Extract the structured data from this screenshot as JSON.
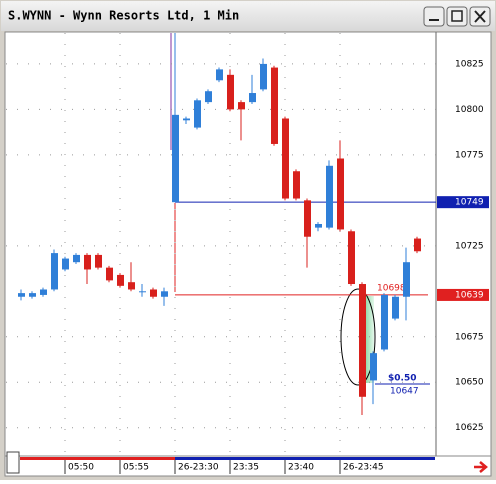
{
  "chart_data": {
    "type": "candlestick",
    "title": "S.WYNN - Wynn Resorts Ltd, 1 Min",
    "categories": [
      null,
      null,
      null,
      null,
      "05:50",
      null,
      null,
      null,
      null,
      "05:55",
      null,
      null,
      null,
      null,
      "26-23:30",
      null,
      null,
      null,
      null,
      "23:35",
      null,
      null,
      null,
      null,
      "23:40",
      null,
      null,
      null,
      null,
      "26-23:45",
      null,
      null,
      null,
      null,
      null,
      null,
      null
    ],
    "series": [
      {
        "name": "open",
        "values": [
          10697,
          10697,
          10698,
          10701,
          10712,
          10716,
          10720,
          10720,
          10713,
          10709,
          10705,
          10700,
          10701,
          10697,
          10749,
          10794,
          10790,
          10804,
          10816,
          10819,
          10804,
          10804,
          10811,
          10823,
          10795,
          10766,
          10750,
          10735,
          10735,
          10773,
          10733,
          10704,
          10651,
          10668,
          10685,
          10697,
          10729
        ]
      },
      {
        "name": "high",
        "values": [
          10701,
          10700,
          10702,
          10723,
          10719,
          10721,
          10721,
          10721,
          10714,
          10710,
          10716,
          10704,
          10702,
          10702,
          10842,
          10796,
          10806,
          10811,
          10823,
          10822,
          10805,
          10819,
          10828,
          10824,
          10796,
          10767,
          10751,
          10738,
          10772,
          10783,
          10734,
          10705,
          10667,
          10699,
          10698,
          10724,
          10730
        ]
      },
      {
        "name": "low",
        "values": [
          10695,
          10696,
          10697,
          10700,
          10711,
          10715,
          10704,
          10712,
          10705,
          10702,
          10700,
          10697,
          10696,
          10692,
          10749,
          10792,
          10789,
          10803,
          10815,
          10799,
          10783,
          10803,
          10810,
          10780,
          10750,
          10750,
          10713,
          10733,
          10734,
          10733,
          10703,
          10632,
          10638,
          10667,
          10684,
          10684,
          10721
        ]
      },
      {
        "name": "close",
        "values": [
          10699,
          10699,
          10701,
          10721,
          10718,
          10720,
          10712,
          10713,
          10706,
          10703,
          10701,
          10700,
          10697,
          10700,
          10797,
          10795,
          10805,
          10810,
          10822,
          10800,
          10800,
          10809,
          10825,
          10781,
          10751,
          10751,
          10730,
          10737,
          10769,
          10734,
          10704,
          10642,
          10666,
          10698,
          10697,
          10716,
          10722
        ]
      }
    ],
    "up_color": "#2f7fd8",
    "down_color": "#d8201c",
    "ylim": [
      10610,
      10842
    ],
    "yticks": [
      10825,
      10800,
      10775,
      10725,
      10675,
      10650,
      10625
    ],
    "grid": true,
    "horizontal_lines": [
      {
        "value": 10749,
        "color": "#1020b0"
      },
      {
        "value": 10698,
        "color": "#e02020"
      }
    ],
    "price_tags": [
      "10749",
      "10639"
    ],
    "annotations": [
      "10698",
      "$0.50",
      "10647"
    ]
  }
}
